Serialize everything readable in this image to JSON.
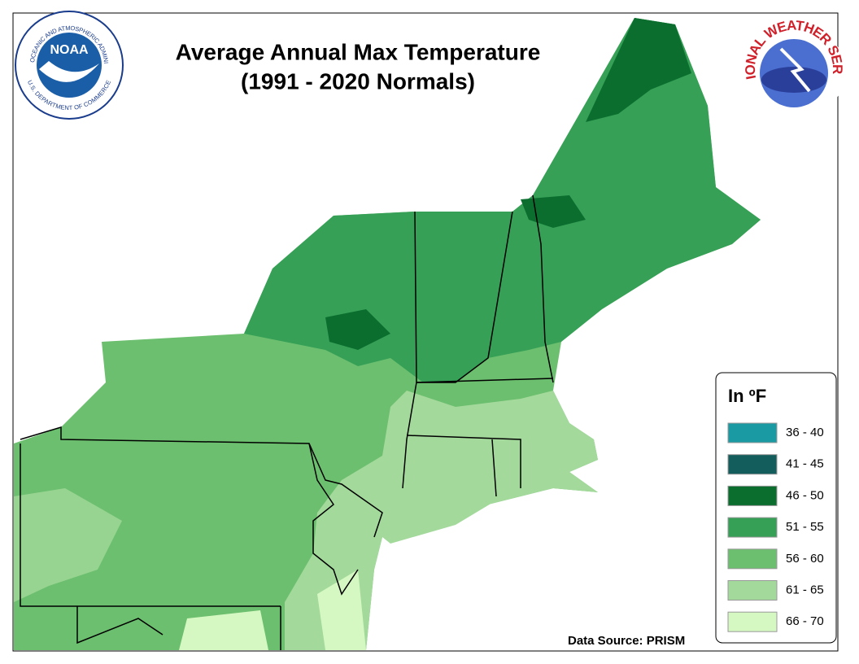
{
  "title_lines": [
    "Average Annual Max Temperature",
    "(1991 - 2020 Normals)"
  ],
  "noaa_logo": {
    "name": "NOAA",
    "ring_top": "NATIONAL OCEANIC AND ATMOSPHERIC ADMINISTRATION",
    "ring_bottom": "U.S. DEPARTMENT OF COMMERCE"
  },
  "nws_logo": {
    "ring": "NATIONAL WEATHER SERVICE"
  },
  "legend": {
    "title": "In ºF",
    "items": [
      {
        "label": "36 - 40",
        "color": "#1a9aa2"
      },
      {
        "label": "41 - 45",
        "color": "#135e5c"
      },
      {
        "label": "46 - 50",
        "color": "#0b6e2f"
      },
      {
        "label": "51 - 55",
        "color": "#35a056"
      },
      {
        "label": "56 - 60",
        "color": "#6cbf6e"
      },
      {
        "label": "61 - 65",
        "color": "#a3d99b"
      },
      {
        "label": "66 - 70",
        "color": "#d5f8c2"
      }
    ]
  },
  "source": "Data Source: PRISM"
}
